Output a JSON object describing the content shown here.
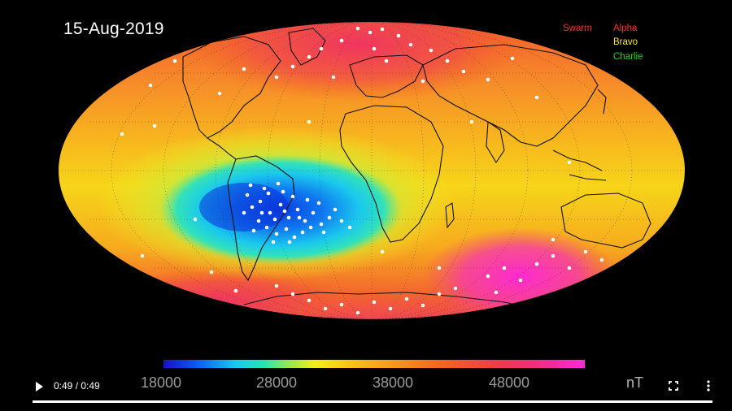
{
  "video": {
    "date": "15-Aug-2019",
    "legend": {
      "title": "Swarm",
      "title_color": "#ff2a2a",
      "satellites": [
        {
          "name": "Alpha",
          "color": "#ff2a2a"
        },
        {
          "name": "Bravo",
          "color": "#f5e62a"
        },
        {
          "name": "Charlie",
          "color": "#1ed31e"
        }
      ]
    },
    "colorbar": {
      "ticks": [
        "18000",
        "28000",
        "38000",
        "48000"
      ],
      "unit": "nT"
    }
  },
  "controls": {
    "play_icon": "play-icon",
    "time": "0:49 / 0:49",
    "progress": 1.0,
    "fullscreen_icon": "fullscreen-icon",
    "more_icon": "more-vert-icon"
  }
}
